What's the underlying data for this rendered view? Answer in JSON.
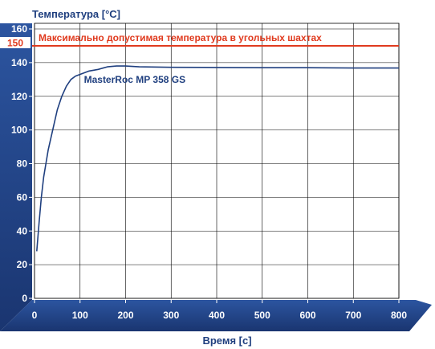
{
  "chart_data": {
    "type": "line",
    "ylabel": "Температура [°C]",
    "xlabel": "Время [с]",
    "xlim": [
      0,
      800
    ],
    "ylim": [
      0,
      160
    ],
    "x_ticks": [
      "0",
      "100",
      "200",
      "300",
      "400",
      "500",
      "600",
      "700",
      "800"
    ],
    "y_ticks": [
      "0",
      "20",
      "40",
      "60",
      "80",
      "100",
      "120",
      "140",
      "160"
    ],
    "grid": true,
    "colors": {
      "axis_band": "#1f3f7f",
      "limit": "#e03a1e",
      "series": "#1f3f7f",
      "grid": "#000000"
    },
    "limit_line": {
      "value": 150,
      "value_label": "150",
      "label": "Максимально допустимая температура в угольных шахтах"
    },
    "series": [
      {
        "name": "MasterRoc MP 358 GS",
        "points": [
          [
            5,
            28
          ],
          [
            10,
            45
          ],
          [
            15,
            60
          ],
          [
            20,
            72
          ],
          [
            30,
            88
          ],
          [
            40,
            100
          ],
          [
            50,
            112
          ],
          [
            60,
            120
          ],
          [
            70,
            126
          ],
          [
            80,
            130
          ],
          [
            90,
            132
          ],
          [
            100,
            133
          ],
          [
            120,
            135
          ],
          [
            140,
            136
          ],
          [
            160,
            137.5
          ],
          [
            180,
            138
          ],
          [
            200,
            138
          ],
          [
            230,
            137.5
          ],
          [
            300,
            137.2
          ],
          [
            400,
            137.1
          ],
          [
            500,
            137
          ],
          [
            600,
            137
          ],
          [
            700,
            136.8
          ],
          [
            800,
            136.8
          ]
        ]
      }
    ]
  }
}
